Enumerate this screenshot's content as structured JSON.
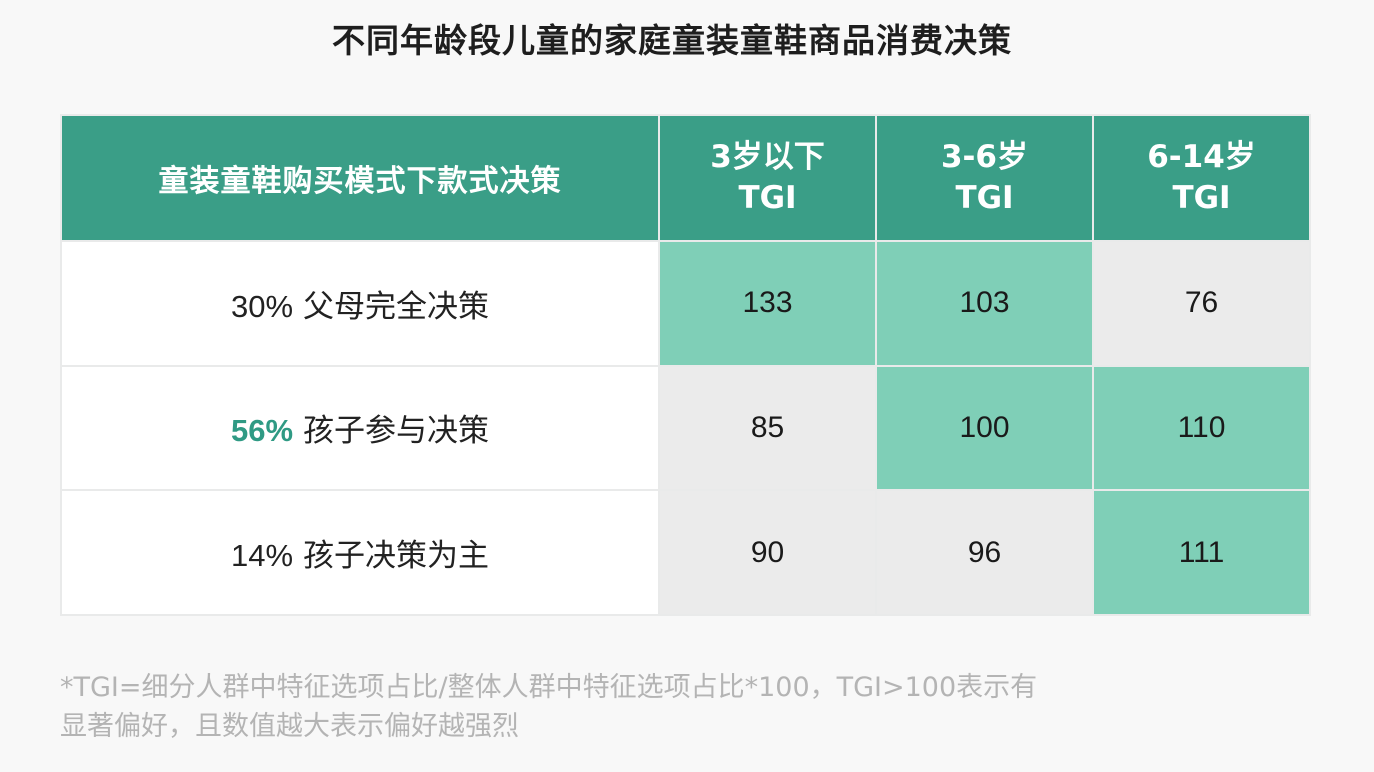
{
  "title": "不同年龄段儿童的家庭童装童鞋商品消费决策",
  "colors": {
    "header_bg": "#3a9e87",
    "high_cell": "#7fcfb7",
    "low_cell": "#ebebeb",
    "highlight_text": "#2f9a84"
  },
  "chart_data": {
    "type": "table",
    "header": {
      "mode_label": "童装童鞋购买模式下款式决策",
      "columns": [
        {
          "line1": "3岁以下",
          "line2": "TGI"
        },
        {
          "line1": "3-6岁",
          "line2": "TGI"
        },
        {
          "line1": "6-14岁",
          "line2": "TGI"
        }
      ]
    },
    "rows": [
      {
        "pct": "30%",
        "label": "父母完全决策",
        "highlight": false,
        "values": [
          "133",
          "103",
          "76"
        ],
        "above_100": [
          true,
          true,
          false
        ]
      },
      {
        "pct": "56%",
        "label": "孩子参与决策",
        "highlight": true,
        "values": [
          "85",
          "100",
          "110"
        ],
        "above_100": [
          false,
          true,
          true
        ]
      },
      {
        "pct": "14%",
        "label": "孩子决策为主",
        "highlight": false,
        "values": [
          "90",
          "96",
          "111"
        ],
        "above_100": [
          false,
          false,
          true
        ]
      }
    ]
  },
  "footnote": {
    "line1": "*TGI=细分人群中特征选项占比/整体人群中特征选项占比*100，TGI>100表示有",
    "line2": "显著偏好，且数值越大表示偏好越强烈"
  }
}
